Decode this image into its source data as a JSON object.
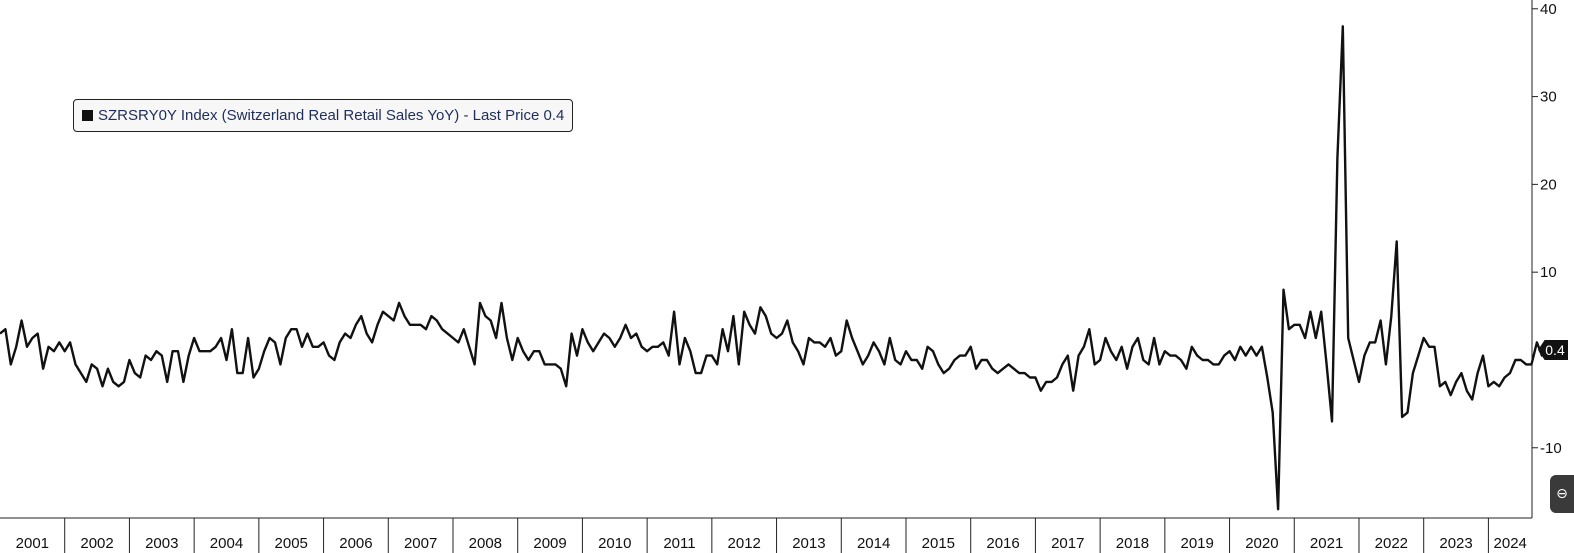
{
  "chart_data": {
    "type": "line",
    "title": "",
    "xlabel": "",
    "ylabel": "",
    "ylim": [
      -18,
      41
    ],
    "xlim": [
      2001.0,
      2024.55
    ],
    "yticks": [
      -10,
      10,
      20,
      30,
      40
    ],
    "x_tick_labels": [
      "2001",
      "2002",
      "2003",
      "2004",
      "2005",
      "2006",
      "2007",
      "2008",
      "2009",
      "2010",
      "2011",
      "2012",
      "2013",
      "2014",
      "2015",
      "2016",
      "2017",
      "2018",
      "2019",
      "2020",
      "2021",
      "2022",
      "2023",
      "2024"
    ],
    "legend": {
      "label": "SZRSRY0Y Index (Switzerland Real Retail Sales YoY) - Last Price 0.4",
      "position": "top-left"
    },
    "last_price_label": "0.4",
    "grid": false,
    "series": [
      {
        "name": "SZRSRY0Y Index (Switzerland Real Retail Sales YoY)",
        "color": "#111111",
        "start": "2001-01",
        "frequency": "monthly",
        "values": [
          3.0,
          3.5,
          -0.5,
          1.5,
          4.5,
          1.5,
          2.5,
          3.0,
          -1.0,
          1.5,
          1.0,
          2.0,
          1.0,
          2.0,
          -0.5,
          -1.5,
          -2.5,
          -0.5,
          -1.0,
          -3.0,
          -1.0,
          -2.5,
          -3.0,
          -2.5,
          0.0,
          -1.5,
          -2.0,
          0.5,
          0.0,
          1.0,
          0.5,
          -2.5,
          1.0,
          1.0,
          -2.5,
          0.5,
          2.5,
          1.0,
          1.0,
          1.0,
          1.5,
          2.5,
          0.0,
          3.5,
          -1.5,
          -1.5,
          2.5,
          -2.0,
          -1.0,
          1.0,
          2.5,
          2.0,
          -0.5,
          2.5,
          3.5,
          3.5,
          1.5,
          3.0,
          1.5,
          1.5,
          2.0,
          0.5,
          0.0,
          2.0,
          3.0,
          2.5,
          4.0,
          5.0,
          3.0,
          2.0,
          4.0,
          5.5,
          5.0,
          4.5,
          6.5,
          5.0,
          4.0,
          4.0,
          4.0,
          3.5,
          5.0,
          4.5,
          3.5,
          3.0,
          2.5,
          2.0,
          3.5,
          1.5,
          -0.5,
          6.5,
          5.0,
          4.5,
          2.5,
          6.5,
          2.5,
          0.0,
          2.5,
          1.0,
          0.0,
          1.0,
          1.0,
          -0.5,
          -0.5,
          -0.5,
          -1.0,
          -3.0,
          3.0,
          0.5,
          3.5,
          2.0,
          1.0,
          2.0,
          3.0,
          2.5,
          1.5,
          2.5,
          4.0,
          2.5,
          3.0,
          1.5,
          1.0,
          1.5,
          1.5,
          2.0,
          0.5,
          5.5,
          -0.5,
          2.5,
          1.0,
          -1.5,
          -1.5,
          0.5,
          0.5,
          -0.5,
          3.5,
          1.0,
          5.0,
          -0.5,
          5.5,
          4.0,
          3.0,
          6.0,
          5.0,
          3.0,
          2.5,
          3.0,
          4.5,
          2.0,
          1.0,
          -0.5,
          2.5,
          2.0,
          2.0,
          1.5,
          2.5,
          0.5,
          1.0,
          4.5,
          2.5,
          1.0,
          -0.5,
          0.5,
          2.0,
          1.0,
          -0.5,
          2.5,
          0.0,
          -0.5,
          1.0,
          0.0,
          0.0,
          -1.0,
          1.5,
          1.0,
          -0.5,
          -1.5,
          -1.0,
          0.0,
          0.5,
          0.5,
          1.5,
          -1.0,
          0.0,
          0.0,
          -1.0,
          -1.5,
          -1.0,
          -0.5,
          -1.0,
          -1.5,
          -1.5,
          -2.0,
          -2.0,
          -3.5,
          -2.5,
          -2.5,
          -2.0,
          -0.5,
          0.5,
          -3.5,
          0.5,
          1.5,
          3.5,
          -0.5,
          0.0,
          2.5,
          1.0,
          0.0,
          1.5,
          -1.0,
          1.5,
          2.5,
          0.0,
          -0.5,
          2.5,
          -0.5,
          1.0,
          0.5,
          0.5,
          0.0,
          -1.0,
          1.5,
          0.5,
          0.0,
          0.0,
          -0.5,
          -0.5,
          0.5,
          1.0,
          0.0,
          1.5,
          0.5,
          1.5,
          0.5,
          1.5,
          -2.0,
          -6.0,
          -17.0,
          8.0,
          3.5,
          4.0,
          4.0,
          2.5,
          5.5,
          2.5,
          5.5,
          -0.5,
          -7.0,
          23.0,
          38.0,
          2.5,
          0.0,
          -2.5,
          0.5,
          2.0,
          2.0,
          4.5,
          -0.5,
          5.0,
          13.5,
          -6.5,
          -6.0,
          -1.5,
          0.5,
          2.5,
          1.5,
          1.5,
          -3.0,
          -2.5,
          -4.0,
          -2.5,
          -1.5,
          -3.5,
          -4.5,
          -1.5,
          0.5,
          -3.0,
          -2.5,
          -3.0,
          -2.0,
          -1.5,
          0.0,
          0.0,
          -0.5,
          -0.5,
          2.0,
          0.4
        ]
      }
    ]
  }
}
